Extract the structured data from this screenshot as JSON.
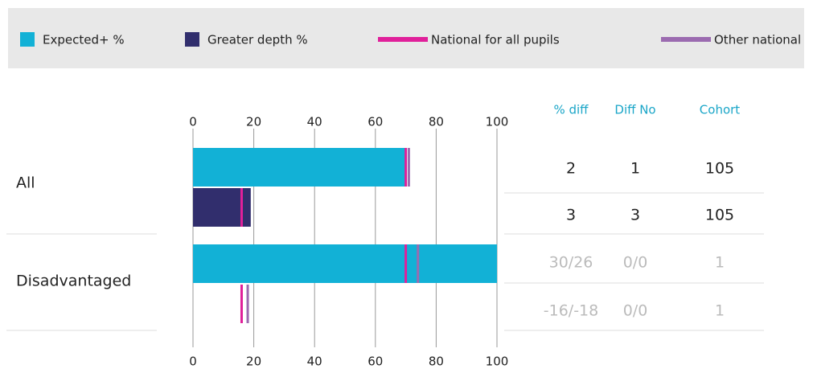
{
  "chart_data": {
    "type": "bar",
    "orientation": "horizontal",
    "categories": [
      "All",
      "Disadvantaged"
    ],
    "series": [
      {
        "name": "Expected+ %",
        "color": "#12b1d6",
        "style": "bar",
        "values": [
          70,
          100
        ]
      },
      {
        "name": "Greater depth %",
        "color": "#312e6d",
        "style": "bar",
        "values": [
          19,
          0
        ]
      },
      {
        "name": "National for all pupils",
        "color": "#e0209a",
        "style": "marker",
        "values": [
          [
            70,
            16
          ],
          [
            70,
            16
          ]
        ]
      },
      {
        "name": "Other national",
        "color": "#9b6bb0",
        "style": "marker",
        "values": [
          [
            71,
            null
          ],
          [
            74,
            18
          ]
        ]
      }
    ],
    "xlim": [
      0,
      100
    ],
    "xticks": [
      0,
      20,
      40,
      60,
      80,
      100
    ],
    "grid": true
  },
  "table": {
    "columns": [
      "% diff",
      "Diff No",
      "Cohort"
    ],
    "rows": [
      [
        "2",
        "1",
        "105"
      ],
      [
        "3",
        "3",
        "105"
      ],
      [
        "30/26",
        "0/0",
        "1"
      ],
      [
        "-16/-18",
        "0/0",
        "1"
      ]
    ]
  }
}
